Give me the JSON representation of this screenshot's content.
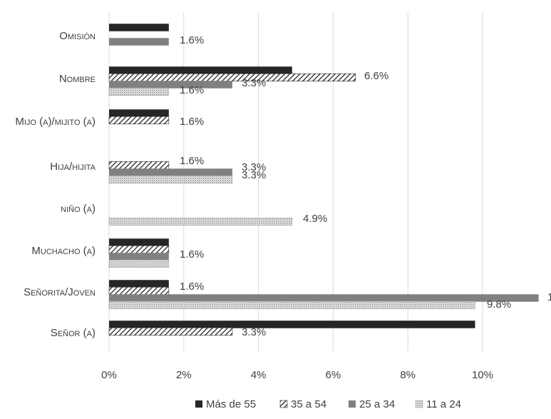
{
  "chart_data": {
    "type": "bar",
    "orientation": "horizontal",
    "categories": [
      "Señor (a)",
      "Señorita/Joven",
      "Muchacho (a)",
      "niño (a)",
      "Hija/hijita",
      "Mijo (a)/mijito (a)",
      "Nombre",
      "Omisión"
    ],
    "series": [
      {
        "name": "Más de 55",
        "pattern": "solid",
        "color": "#262626",
        "values": [
          9.8,
          1.6,
          1.6,
          null,
          null,
          1.6,
          4.9,
          1.6
        ]
      },
      {
        "name": "35 a 54",
        "pattern": "diagonal-hatch",
        "color": "#262626",
        "values": [
          3.3,
          1.6,
          1.6,
          null,
          1.6,
          1.6,
          6.6,
          null
        ]
      },
      {
        "name": "25 a 34",
        "pattern": "solid",
        "color": "#808080",
        "values": [
          null,
          11.5,
          1.6,
          null,
          3.3,
          null,
          3.3,
          1.6
        ]
      },
      {
        "name": "11 a 24",
        "pattern": "dotted",
        "color": "#a6a6a6",
        "values": [
          null,
          9.8,
          1.6,
          4.9,
          3.3,
          null,
          1.6,
          null
        ]
      }
    ],
    "data_labels": [
      {
        "category": "Omisión",
        "text": "1.6%"
      },
      {
        "category": "Nombre",
        "text": "6.6%"
      },
      {
        "category": "Nombre",
        "text": "3.3%"
      },
      {
        "category": "Nombre",
        "text": "1.6%"
      },
      {
        "category": "Mijo (a)/mijito (a)",
        "text": "1.6%"
      },
      {
        "category": "Hija/hijita",
        "text": "1.6%"
      },
      {
        "category": "Hija/hijita",
        "text": "3.3%"
      },
      {
        "category": "Hija/hijita",
        "text": "3.3%"
      },
      {
        "category": "niño (a)",
        "text": "4.9%"
      },
      {
        "category": "Muchacho (a)",
        "text": "1.6%"
      },
      {
        "category": "Señorita/Joven",
        "text": "1.6%"
      },
      {
        "category": "Señorita/Joven",
        "text": "9.8%"
      },
      {
        "category": "Señorita/Joven",
        "text": "1"
      },
      {
        "category": "Señor (a)",
        "text": "3.3%"
      }
    ],
    "x_ticks": [
      "0%",
      "2%",
      "4%",
      "6%",
      "8%",
      "10%",
      "1"
    ],
    "xlim": [
      0,
      12
    ],
    "xlabel": "",
    "ylabel": "",
    "title": "",
    "grid": "vertical",
    "legend_position": "bottom"
  }
}
